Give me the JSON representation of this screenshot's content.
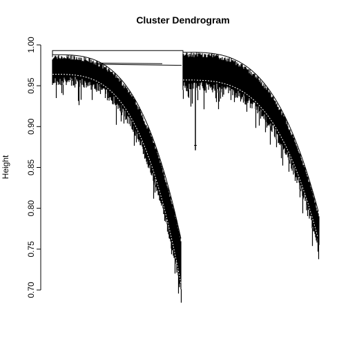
{
  "chart_data": {
    "type": "dendrogram",
    "title": "Cluster Dendrogram",
    "xlabel": "",
    "ylabel": "Height",
    "ylim": [
      0.7,
      1.0
    ],
    "yticks": [
      {
        "value": 1.0,
        "label": "1.00"
      },
      {
        "value": 0.95,
        "label": "0.95"
      },
      {
        "value": 0.9,
        "label": "0.90"
      },
      {
        "value": 0.85,
        "label": "0.85"
      },
      {
        "value": 0.8,
        "label": "0.80"
      },
      {
        "value": 0.75,
        "label": "0.75"
      },
      {
        "value": 0.7,
        "label": "0.70"
      }
    ],
    "root_merge_height": 0.993,
    "clusters": [
      {
        "side": "left",
        "merge_height": 0.993,
        "leaf_height_start": 0.962,
        "leaf_height_end": 0.706,
        "branch_height_start": 0.985,
        "branch_height_end": 0.76
      },
      {
        "side": "right",
        "merge_height": 0.99,
        "leaf_height_start": 0.955,
        "leaf_height_end": 0.757,
        "branch_height_start": 0.988,
        "branch_height_end": 0.79
      }
    ],
    "outlier_branch": {
      "top": 0.975,
      "bottom": 0.871
    },
    "grid": false,
    "legend": "none"
  }
}
